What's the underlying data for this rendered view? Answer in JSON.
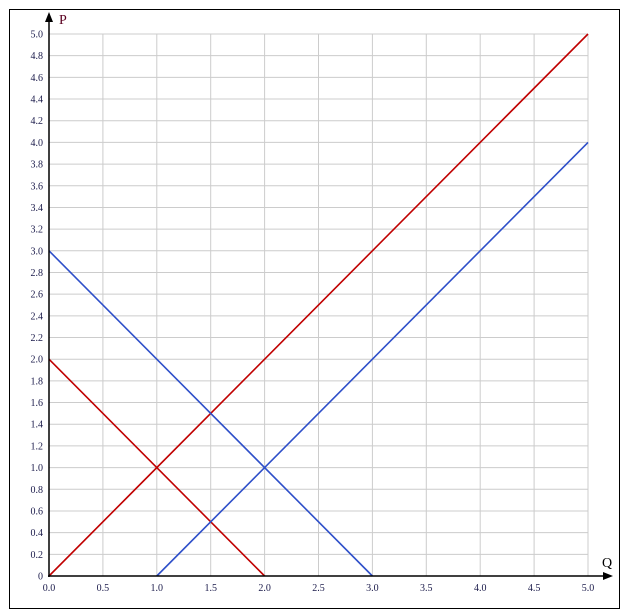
{
  "chart_data": {
    "type": "line",
    "xlabel": "Q",
    "ylabel": "P",
    "xlim": [
      0,
      5
    ],
    "ylim": [
      0,
      5
    ],
    "grid": true,
    "x_ticks": [
      "0.0",
      "0.5",
      "1.0",
      "1.5",
      "2.0",
      "2.5",
      "3.0",
      "3.5",
      "4.0",
      "4.5",
      "5.0"
    ],
    "x_tick_values": [
      0,
      0.5,
      1,
      1.5,
      2,
      2.5,
      3,
      3.5,
      4,
      4.5,
      5
    ],
    "y_ticks": [
      "0",
      "0.2",
      "0.4",
      "0.6",
      "0.8",
      "1.0",
      "1.2",
      "1.4",
      "1.6",
      "1.8",
      "2.0",
      "2.2",
      "2.4",
      "2.6",
      "2.8",
      "3.0",
      "3.2",
      "3.4",
      "3.6",
      "3.8",
      "4.0",
      "4.2",
      "4.4",
      "4.6",
      "4.8",
      "5.0"
    ],
    "y_tick_values": [
      0,
      0.2,
      0.4,
      0.6,
      0.8,
      1,
      1.2,
      1.4,
      1.6,
      1.8,
      2,
      2.2,
      2.4,
      2.6,
      2.8,
      3,
      3.2,
      3.4,
      3.6,
      3.8,
      4,
      4.2,
      4.4,
      4.6,
      4.8,
      5
    ],
    "series": [
      {
        "color": "#c00000",
        "points": [
          [
            0,
            0
          ],
          [
            5,
            5
          ]
        ]
      },
      {
        "color": "#c00000",
        "points": [
          [
            0,
            2
          ],
          [
            2,
            0
          ]
        ]
      },
      {
        "color": "#2e4fc9",
        "points": [
          [
            0,
            3
          ],
          [
            3,
            0
          ]
        ]
      },
      {
        "color": "#2e4fc9",
        "points": [
          [
            1,
            0
          ],
          [
            5,
            4
          ]
        ]
      }
    ],
    "colors": {
      "grid": "#cccccc",
      "tick_label": "#1a1a4a",
      "axis": "#000000"
    }
  }
}
